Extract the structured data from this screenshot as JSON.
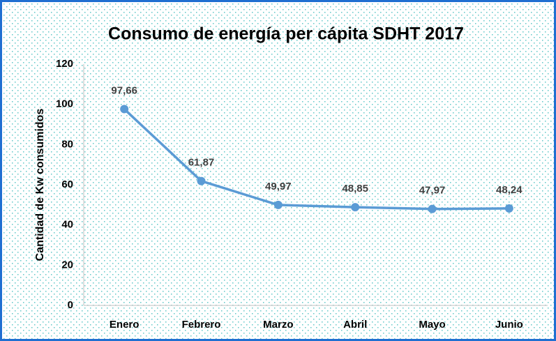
{
  "chart_data": {
    "type": "line",
    "title": "Consumo de energía per cápita SDHT 2017",
    "y_label": "Cantidad de Kw consumidos",
    "categories": [
      "Enero",
      "Febrero",
      "Marzo",
      "Abril",
      "Mayo",
      "Junio"
    ],
    "values": [
      97.66,
      61.87,
      49.97,
      48.85,
      47.97,
      48.24
    ],
    "value_labels": [
      "97,66",
      "61,87",
      "49,97",
      "48,85",
      "47,97",
      "48,24"
    ],
    "color": "#5b9bd5",
    "ylim": [
      0,
      120
    ],
    "yticks": [
      0,
      20,
      40,
      60,
      80,
      100,
      120
    ],
    "grid": false
  }
}
